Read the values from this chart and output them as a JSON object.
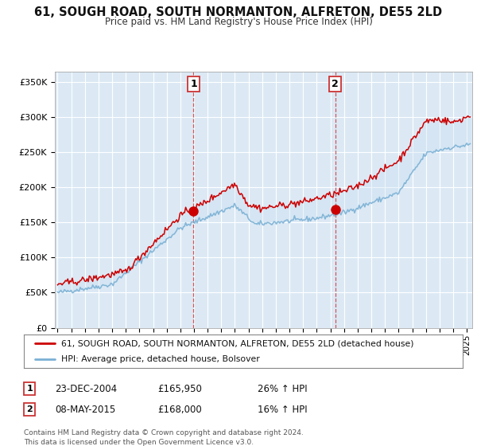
{
  "title": "61, SOUGH ROAD, SOUTH NORMANTON, ALFRETON, DE55 2LD",
  "subtitle": "Price paid vs. HM Land Registry's House Price Index (HPI)",
  "title_fontsize": 10.5,
  "subtitle_fontsize": 8.5,
  "background_color": "#ffffff",
  "plot_bg_color": "#dce9f5",
  "fill_color": "#c8dff0",
  "ylabel_ticks": [
    "£0",
    "£50K",
    "£100K",
    "£150K",
    "£200K",
    "£250K",
    "£300K",
    "£350K"
  ],
  "ytick_values": [
    0,
    50000,
    100000,
    150000,
    200000,
    250000,
    300000,
    350000
  ],
  "ylim": [
    0,
    365000
  ],
  "xlim_start": 1994.8,
  "xlim_end": 2025.4,
  "red_line_color": "#cc0000",
  "blue_line_color": "#7ab0d4",
  "marker1_x": 2004.97,
  "marker1_y": 165950,
  "marker2_x": 2015.36,
  "marker2_y": 168000,
  "vline1_x": 2004.97,
  "vline2_x": 2015.36,
  "legend_label_red": "61, SOUGH ROAD, SOUTH NORMANTON, ALFRETON, DE55 2LD (detached house)",
  "legend_label_blue": "HPI: Average price, detached house, Bolsover",
  "table_row1": [
    "1",
    "23-DEC-2004",
    "£165,950",
    "26% ↑ HPI"
  ],
  "table_row2": [
    "2",
    "08-MAY-2015",
    "£168,000",
    "16% ↑ HPI"
  ],
  "footer": "Contains HM Land Registry data © Crown copyright and database right 2024.\nThis data is licensed under the Open Government Licence v3.0.",
  "grid_color": "#ffffff",
  "tick_years": [
    1995,
    1996,
    1997,
    1998,
    1999,
    2000,
    2001,
    2002,
    2003,
    2004,
    2005,
    2006,
    2007,
    2008,
    2009,
    2010,
    2011,
    2012,
    2013,
    2014,
    2015,
    2016,
    2017,
    2018,
    2019,
    2020,
    2021,
    2022,
    2023,
    2024,
    2025
  ]
}
